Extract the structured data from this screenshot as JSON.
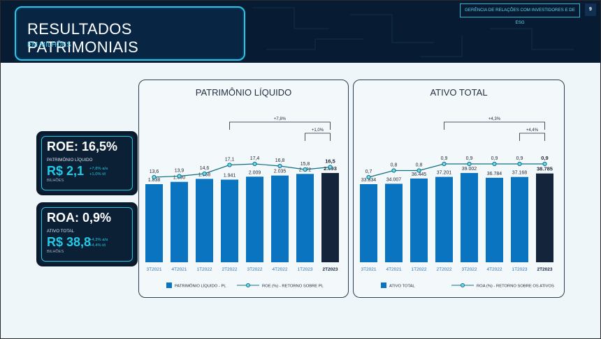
{
  "header": {
    "title": "RESULTADOS PATRIMONIAIS",
    "subtitle": "EM MILHÕES",
    "department": "GERÊNCIA DE RELAÇÕES COM INVESTIDORES E DE ESG",
    "page_number": "9"
  },
  "kpis": [
    {
      "title": "ROE: 16,5%",
      "label": "PATRIMÔNIO LÍQUIDO",
      "value": "R$ 2,1",
      "var_yoy": "+7,8% a/a",
      "var_qoq": "+1,0% t/t",
      "unit": "BILHÕES"
    },
    {
      "title": "ROA: 0,9%",
      "label": "ATIVO TOTAL",
      "value": "R$ 38,8",
      "var_yoy": "+4,3% a/a",
      "var_qoq": "+4,4% t/t",
      "unit": "BILHÕES"
    }
  ],
  "colors": {
    "bar": "#0b74c0",
    "bar_highlight": "#14243b",
    "line": "#0f6e86",
    "accent": "#22c7e7",
    "dark_bg": "#071c33"
  },
  "chart_data": [
    {
      "type": "bar",
      "title": "PATRIMÔNIO LÍQUIDO",
      "categories": [
        "3T2021",
        "4T2021",
        "1T2022",
        "2T2022",
        "3T2022",
        "4T2022",
        "1T2023",
        "2T2023"
      ],
      "bar_labels": [
        "1.838",
        "1.890",
        "1.958",
        "1.941",
        "2.009",
        "2.035",
        "2.072",
        "2.093"
      ],
      "line_labels": [
        "13,6",
        "13,9",
        "14,6",
        "17,1",
        "17,4",
        "16,8",
        "15,8",
        "16,5"
      ],
      "series": [
        {
          "name": "PATRIMÔNIO LÍQUIDO - PL",
          "type": "bar",
          "values": [
            1838,
            1890,
            1958,
            1941,
            2009,
            2035,
            2072,
            2093
          ]
        },
        {
          "name": "ROE (%) - RETORNO SOBRE PL",
          "type": "line",
          "values": [
            13.6,
            13.9,
            14.6,
            17.1,
            17.4,
            16.8,
            15.8,
            16.5
          ]
        }
      ],
      "annotations": [
        {
          "text": "+7,8%",
          "from": "2T2022",
          "to": "2T2023"
        },
        {
          "text": "+1,0%",
          "from": "1T2023",
          "to": "2T2023"
        }
      ],
      "highlight_last": true,
      "legend_position": "bottom"
    },
    {
      "type": "bar",
      "title": "ATIVO TOTAL",
      "categories": [
        "3T2021",
        "4T2021",
        "1T2022",
        "2T2022",
        "3T2022",
        "4T2022",
        "1T2023",
        "2T2023"
      ],
      "bar_labels": [
        "33.834",
        "34.007",
        "36.445",
        "37.201",
        "39.002",
        "36.784",
        "37.168",
        "38.785"
      ],
      "line_labels": [
        "0,7",
        "0,8",
        "0,8",
        "0,9",
        "0,9",
        "0,9",
        "0,9",
        "0,9"
      ],
      "series": [
        {
          "name": "ATIVO TOTAL",
          "type": "bar",
          "values": [
            33834,
            34007,
            36445,
            37201,
            39002,
            36784,
            37168,
            38785
          ]
        },
        {
          "name": "ROA (%) - RETORNO SOBRE OS ATIVOS",
          "type": "line",
          "values": [
            0.7,
            0.8,
            0.8,
            0.9,
            0.9,
            0.9,
            0.9,
            0.9
          ]
        }
      ],
      "annotations": [
        {
          "text": "+4,3%",
          "from": "2T2022",
          "to": "2T2023"
        },
        {
          "text": "+4,4%",
          "from": "1T2023",
          "to": "2T2023"
        }
      ],
      "highlight_last": true,
      "legend_position": "bottom"
    }
  ]
}
